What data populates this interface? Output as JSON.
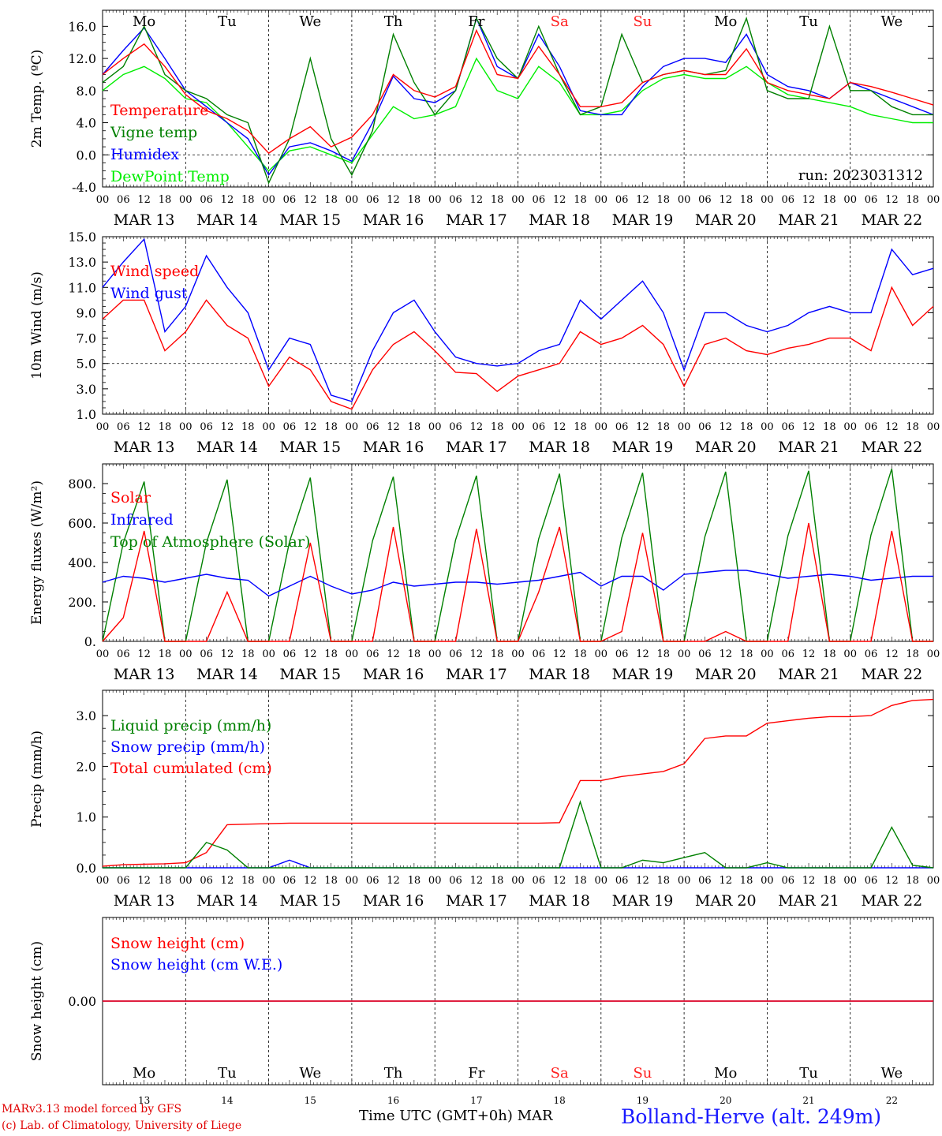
{
  "days_top": [
    {
      "label": "Mo",
      "color": "#000000"
    },
    {
      "label": "Tu",
      "color": "#000000"
    },
    {
      "label": "We",
      "color": "#000000"
    },
    {
      "label": "Th",
      "color": "#000000"
    },
    {
      "label": "Fr",
      "color": "#000000"
    },
    {
      "label": "Sa",
      "color": "#ff2020"
    },
    {
      "label": "Su",
      "color": "#ff2020"
    },
    {
      "label": "Mo",
      "color": "#000000"
    },
    {
      "label": "Tu",
      "color": "#000000"
    },
    {
      "label": "We",
      "color": "#000000"
    }
  ],
  "date_labels": [
    "MAR 13",
    "MAR 14",
    "MAR 15",
    "MAR 16",
    "MAR 17",
    "MAR 18",
    "MAR 19",
    "MAR 20",
    "MAR 21",
    "MAR 22"
  ],
  "hour_labels": [
    "00",
    "06",
    "12",
    "18"
  ],
  "final_hour_label": "00",
  "bottom_day_numbers": [
    "13",
    "14",
    "15",
    "16",
    "17",
    "18",
    "19",
    "20",
    "21",
    "22"
  ],
  "footer": {
    "model": "MARv3.13 model forced by GFS",
    "lab": "(c) Lab. of Climatology, University of Liege",
    "time_axis": "Time UTC (GMT+0h) MAR",
    "station": "Bolland-Herve (alt. 249m)"
  },
  "chart_data": [
    {
      "type": "line",
      "ylabel": "2m Temp. (ºC)",
      "ylim": [
        -4,
        18
      ],
      "yticks": [
        -4,
        0,
        4,
        8,
        12,
        16
      ],
      "ytick_labels": [
        "-4.0",
        "0.0",
        "4.0",
        "8.0",
        "12.0",
        "16.0"
      ],
      "annotation": "run: 2023031312",
      "x": [
        0,
        6,
        12,
        18,
        24,
        30,
        36,
        42,
        48,
        54,
        60,
        66,
        72,
        78,
        84,
        90,
        96,
        102,
        108,
        114,
        120,
        126,
        132,
        138,
        144,
        150,
        156,
        162,
        168,
        174,
        180,
        186,
        192,
        198,
        204,
        210,
        216,
        222,
        228,
        234,
        240
      ],
      "series": [
        {
          "name": "Temperature",
          "color": "#ff0000",
          "values": [
            10,
            12,
            13.8,
            11,
            7.5,
            5.5,
            4.5,
            3,
            0.2,
            2,
            3.5,
            1,
            2.2,
            5,
            10,
            8,
            7.2,
            8.5,
            15.5,
            10,
            9.5,
            13.5,
            10,
            6,
            6,
            6.5,
            9,
            10,
            10.5,
            10,
            10,
            13.2,
            9,
            8,
            7.5,
            7,
            9,
            8.5,
            7.8,
            7,
            6.2
          ]
        },
        {
          "name": "Vigne temp",
          "color": "#008000",
          "values": [
            9,
            11,
            16,
            10,
            8,
            7,
            5,
            4,
            -3.5,
            2,
            12,
            2,
            -2.5,
            3,
            15,
            9,
            5,
            8,
            17,
            12,
            9.5,
            16,
            10,
            5,
            6,
            15,
            9,
            10,
            10.5,
            10,
            10.5,
            17,
            8,
            7,
            7,
            16,
            8,
            8,
            6,
            5,
            5
          ]
        },
        {
          "name": "Humidex",
          "color": "#0000ff",
          "values": [
            10,
            13,
            15.8,
            12,
            8,
            6,
            4,
            2,
            -2.5,
            1,
            1.5,
            0.5,
            -0.8,
            4,
            9.8,
            7,
            6.5,
            8,
            17,
            11,
            9.5,
            15,
            11,
            5.5,
            5,
            5,
            8.5,
            11,
            12,
            12,
            11.5,
            15,
            10,
            8.5,
            8,
            7,
            9,
            8,
            7,
            6,
            5
          ]
        },
        {
          "name": "DewPoint Temp",
          "color": "#00ee00",
          "values": [
            8,
            10,
            11,
            9.5,
            7,
            6.5,
            4,
            1,
            -2,
            0.5,
            1,
            0,
            -1,
            2.5,
            6,
            4.5,
            5,
            6,
            12,
            8,
            7,
            11,
            9,
            5,
            5,
            5.5,
            8,
            9.5,
            10,
            9.5,
            9.5,
            11,
            9,
            7.5,
            7,
            6.5,
            6,
            5,
            4.5,
            4,
            4
          ]
        }
      ]
    },
    {
      "type": "line",
      "ylabel": "10m Wind (m/s)",
      "ylim": [
        1,
        15
      ],
      "yticks": [
        1,
        3,
        5,
        7,
        9,
        11,
        13,
        15
      ],
      "ytick_labels": [
        "1.0",
        "3.0",
        "5.0",
        "7.0",
        "9.0",
        "11.0",
        "13.0",
        "15.0"
      ],
      "reference_line": 5,
      "x": [
        0,
        6,
        12,
        18,
        24,
        30,
        36,
        42,
        48,
        54,
        60,
        66,
        72,
        78,
        84,
        90,
        96,
        102,
        108,
        114,
        120,
        126,
        132,
        138,
        144,
        150,
        156,
        162,
        168,
        174,
        180,
        186,
        192,
        198,
        204,
        210,
        216,
        222,
        228,
        234,
        240
      ],
      "series": [
        {
          "name": "Wind speed",
          "color": "#ff0000",
          "values": [
            8.5,
            10,
            10,
            6,
            7.5,
            10,
            8,
            7,
            3.2,
            5.5,
            4.5,
            2,
            1.4,
            4.5,
            6.5,
            7.5,
            6,
            4.3,
            4.2,
            2.8,
            4,
            4.5,
            5,
            7.5,
            6.5,
            7,
            8,
            6.5,
            3.2,
            6.5,
            7,
            6,
            5.7,
            6.2,
            6.5,
            7,
            7,
            6,
            11,
            8,
            9.5
          ]
        },
        {
          "name": "Wind gust",
          "color": "#0000ff",
          "values": [
            11,
            13,
            14.8,
            7.5,
            9.5,
            13.5,
            11,
            9,
            4.5,
            7,
            6.5,
            2.5,
            2,
            6,
            9,
            10,
            7.5,
            5.5,
            5,
            4.8,
            5,
            6,
            6.5,
            10,
            8.5,
            10,
            11.5,
            9,
            4.5,
            9,
            9,
            8,
            7.5,
            8,
            9,
            9.5,
            9,
            9,
            14,
            12,
            12.5
          ]
        }
      ]
    },
    {
      "type": "line",
      "ylabel": "Energy fluxes (W/m²)",
      "ylim": [
        0,
        900
      ],
      "yticks": [
        0,
        200,
        400,
        600,
        800
      ],
      "ytick_labels": [
        "0.",
        "200.",
        "400.",
        "600.",
        "800."
      ],
      "x": [
        0,
        6,
        12,
        18,
        24,
        30,
        36,
        42,
        48,
        54,
        60,
        66,
        72,
        78,
        84,
        90,
        96,
        102,
        108,
        114,
        120,
        126,
        132,
        138,
        144,
        150,
        156,
        162,
        168,
        174,
        180,
        186,
        192,
        198,
        204,
        210,
        216,
        222,
        228,
        234,
        240
      ],
      "series": [
        {
          "name": "Solar",
          "color": "#ff0000",
          "values": [
            0,
            120,
            560,
            0,
            0,
            0,
            250,
            0,
            0,
            0,
            500,
            0,
            0,
            0,
            580,
            0,
            0,
            0,
            570,
            0,
            0,
            250,
            580,
            0,
            0,
            50,
            550,
            0,
            0,
            0,
            50,
            0,
            0,
            0,
            600,
            0,
            0,
            0,
            560,
            0,
            0
          ]
        },
        {
          "name": "Infrared",
          "color": "#0000ff",
          "values": [
            300,
            330,
            320,
            300,
            320,
            340,
            320,
            310,
            230,
            280,
            330,
            280,
            240,
            260,
            300,
            280,
            290,
            300,
            300,
            290,
            300,
            310,
            330,
            350,
            280,
            330,
            330,
            260,
            340,
            350,
            360,
            360,
            340,
            320,
            330,
            340,
            330,
            310,
            320,
            330,
            330
          ]
        },
        {
          "name": "Top of Atmosphere (Solar)",
          "color": "#008000",
          "values": [
            0,
            500,
            810,
            0,
            0,
            500,
            820,
            0,
            0,
            505,
            830,
            0,
            0,
            510,
            835,
            0,
            0,
            515,
            840,
            0,
            0,
            520,
            850,
            0,
            0,
            525,
            855,
            0,
            0,
            530,
            860,
            0,
            0,
            535,
            865,
            0,
            0,
            540,
            875,
            0,
            0
          ]
        }
      ]
    },
    {
      "type": "line",
      "ylabel": "Precip (mm/h)",
      "ylim": [
        0,
        3.5
      ],
      "yticks": [
        0,
        1,
        2,
        3
      ],
      "ytick_labels": [
        "0.0",
        "1.0",
        "2.0",
        "3.0"
      ],
      "x": [
        0,
        6,
        12,
        18,
        24,
        30,
        36,
        42,
        48,
        54,
        60,
        66,
        72,
        78,
        84,
        90,
        96,
        102,
        108,
        114,
        120,
        126,
        132,
        138,
        144,
        150,
        156,
        162,
        168,
        174,
        180,
        186,
        192,
        198,
        204,
        210,
        216,
        222,
        228,
        234,
        240
      ],
      "series": [
        {
          "name": "Liquid precip (mm/h)",
          "color": "#008000",
          "values": [
            0,
            0,
            0,
            0,
            0,
            0.5,
            0.35,
            0,
            0,
            0,
            0,
            0,
            0,
            0,
            0,
            0,
            0,
            0,
            0,
            0,
            0,
            0,
            0,
            1.3,
            0,
            0,
            0.15,
            0.1,
            0.2,
            0.3,
            0,
            0,
            0.1,
            0,
            0,
            0,
            0,
            0,
            0.8,
            0.05,
            0
          ]
        },
        {
          "name": "Snow precip (mm/h)",
          "color": "#0000ff",
          "values": [
            0,
            0,
            0,
            0,
            0,
            0,
            0,
            0,
            0,
            0.15,
            0,
            0,
            0,
            0,
            0,
            0,
            0,
            0,
            0,
            0,
            0,
            0,
            0,
            0,
            0,
            0,
            0,
            0,
            0,
            0,
            0,
            0,
            0,
            0,
            0,
            0,
            0,
            0,
            0,
            0,
            0
          ]
        },
        {
          "name": "Total cumulated (cm)",
          "color": "#ff0000",
          "values": [
            0.03,
            0.06,
            0.07,
            0.08,
            0.1,
            0.3,
            0.85,
            0.86,
            0.87,
            0.88,
            0.88,
            0.88,
            0.88,
            0.88,
            0.88,
            0.88,
            0.88,
            0.88,
            0.88,
            0.88,
            0.88,
            0.88,
            0.89,
            1.72,
            1.72,
            1.8,
            1.85,
            1.9,
            2.05,
            2.55,
            2.6,
            2.6,
            2.85,
            2.9,
            2.95,
            2.98,
            2.98,
            3.0,
            3.2,
            3.3,
            3.32
          ]
        }
      ]
    },
    {
      "type": "line",
      "ylabel": "Snow height (cm)",
      "ylim": [
        -1,
        1
      ],
      "yticks": [
        0
      ],
      "ytick_labels": [
        "0.00"
      ],
      "x": [
        0,
        240
      ],
      "series": [
        {
          "name": "Snow height (cm)",
          "color": "#ff0000",
          "values": [
            0,
            0
          ]
        },
        {
          "name": "Snow height (cm W.E.)",
          "color": "#0000ff",
          "values": [
            0,
            0
          ]
        }
      ]
    }
  ]
}
